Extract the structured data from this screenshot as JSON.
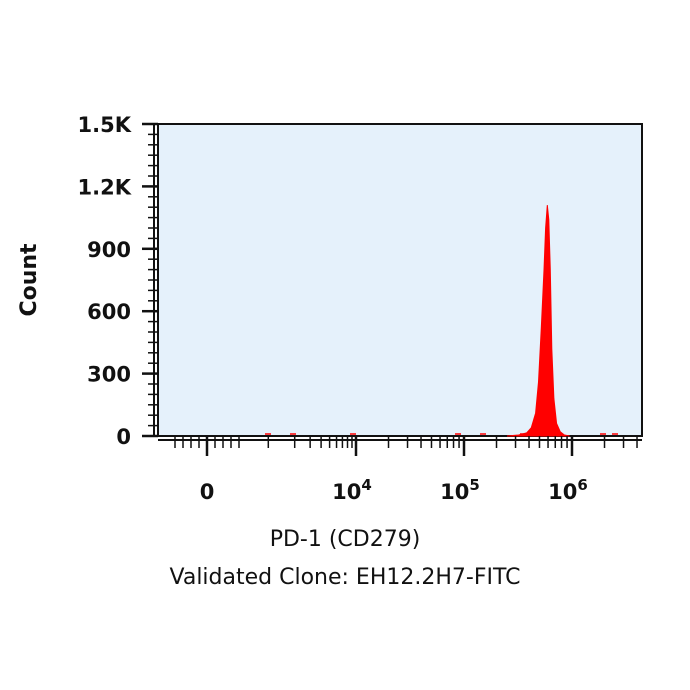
{
  "chart_data": {
    "type": "area",
    "ylabel": "Count",
    "xlabel": "PD-1 (CD279)",
    "xlabel_line2": "Validated Clone: EH12.2H7-FITC",
    "y_range": [
      0,
      1500
    ],
    "x_scale": "biexponential",
    "y_ticks": [
      {
        "value": 0,
        "label": "0"
      },
      {
        "value": 300,
        "label": "300"
      },
      {
        "value": 600,
        "label": "600"
      },
      {
        "value": 900,
        "label": "900"
      },
      {
        "value": 1200,
        "label": "1.2K"
      },
      {
        "value": 1500,
        "label": "1.5K"
      }
    ],
    "x_ticks": [
      {
        "value": 0,
        "base": "0",
        "exp": ""
      },
      {
        "value": 10000,
        "base": "10",
        "exp": "4"
      },
      {
        "value": 100000,
        "base": "10",
        "exp": "5"
      },
      {
        "value": 1000000,
        "base": "10",
        "exp": "6"
      }
    ],
    "series": [
      {
        "color": "#ff0000",
        "fill": "#ff0000",
        "x": [
          250000,
          320000,
          380000,
          420000,
          460000,
          490000,
          520000,
          550000,
          570000,
          590000,
          610000,
          630000,
          650000,
          680000,
          720000,
          780000,
          850000,
          950000
        ],
        "y": [
          0,
          5,
          15,
          40,
          110,
          260,
          520,
          800,
          1000,
          1110,
          1040,
          800,
          420,
          180,
          60,
          20,
          5,
          0
        ]
      }
    ],
    "plot_background": "#e5f1fb"
  }
}
